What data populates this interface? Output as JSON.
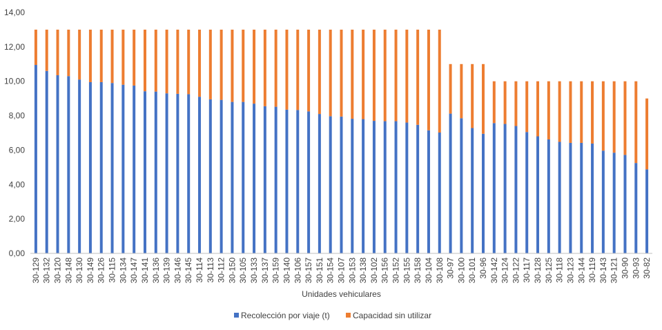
{
  "chart_data": {
    "type": "bar",
    "stacked": true,
    "xlabel": "Unidades vehiculares",
    "ylabel": "",
    "ylim": [
      0,
      14
    ],
    "yticks": [
      "0,00",
      "2,00",
      "4,00",
      "6,00",
      "8,00",
      "10,00",
      "12,00",
      "14,00"
    ],
    "grid": false,
    "legend_position": "bottom",
    "categories": [
      "30-129",
      "30-132",
      "30-120",
      "30-148",
      "30-130",
      "30-149",
      "30-126",
      "30-115",
      "30-134",
      "30-147",
      "30-141",
      "30-136",
      "30-139",
      "30-146",
      "30-145",
      "30-114",
      "30-113",
      "30-112",
      "30-150",
      "30-105",
      "30-133",
      "30-137",
      "30-159",
      "30-140",
      "30-106",
      "30-157",
      "30-151",
      "30-154",
      "30-107",
      "30-153",
      "30-138",
      "30-102",
      "30-156",
      "30-152",
      "30-155",
      "30-158",
      "30-104",
      "30-108",
      "30-97",
      "30-100",
      "30-101",
      "30-96",
      "30-142",
      "30-124",
      "30-122",
      "30-117",
      "30-128",
      "30-125",
      "30-118",
      "30-123",
      "30-144",
      "30-119",
      "30-143",
      "30-121",
      "30-90",
      "30-93",
      "30-82"
    ],
    "series": [
      {
        "name": "Recolección por viaje (t)",
        "color": "#4472C4",
        "values": [
          10.95,
          10.6,
          10.35,
          10.3,
          10.1,
          9.95,
          9.95,
          9.9,
          9.8,
          9.75,
          9.42,
          9.4,
          9.3,
          9.27,
          9.25,
          9.1,
          8.95,
          8.92,
          8.8,
          8.8,
          8.7,
          8.55,
          8.52,
          8.35,
          8.33,
          8.25,
          8.1,
          7.97,
          7.95,
          7.82,
          7.8,
          7.7,
          7.68,
          7.68,
          7.6,
          7.47,
          7.15,
          7.02,
          8.12,
          7.85,
          7.28,
          6.95,
          7.57,
          7.52,
          7.4,
          7.05,
          6.8,
          6.62,
          6.48,
          6.42,
          6.42,
          6.38,
          5.97,
          5.85,
          5.72,
          5.25,
          4.88
        ]
      },
      {
        "name": "Capacidad sin utilizar",
        "color": "#ED7D31",
        "values": [
          2.05,
          2.4,
          2.65,
          2.7,
          2.9,
          3.05,
          3.05,
          3.1,
          3.2,
          3.25,
          3.58,
          3.6,
          3.7,
          3.73,
          3.75,
          3.9,
          4.05,
          4.08,
          4.2,
          4.2,
          4.3,
          4.45,
          4.48,
          4.65,
          4.67,
          4.75,
          4.9,
          5.03,
          5.05,
          5.18,
          5.2,
          5.3,
          5.32,
          5.32,
          5.4,
          5.53,
          5.85,
          5.98,
          2.88,
          3.15,
          3.72,
          4.05,
          2.43,
          2.48,
          2.6,
          2.95,
          3.2,
          3.38,
          3.52,
          3.58,
          3.58,
          3.62,
          4.03,
          4.15,
          4.28,
          4.75,
          4.12
        ]
      }
    ]
  }
}
